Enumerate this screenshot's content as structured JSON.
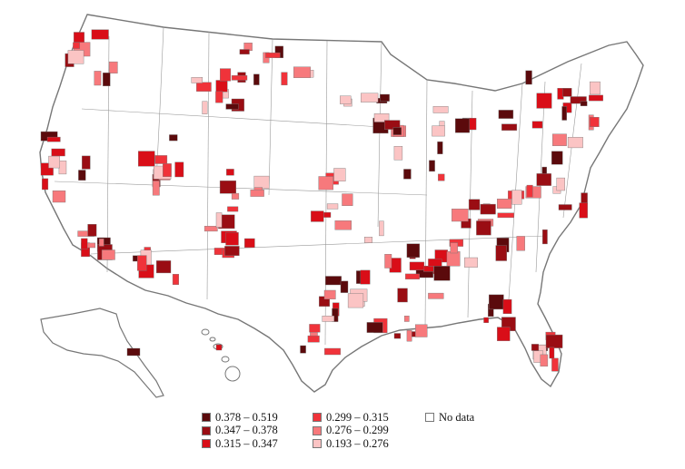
{
  "map": {
    "colors": {
      "bin1": "#5b0a0c",
      "bin2": "#9a0d13",
      "bin3": "#d90e18",
      "bin4": "#f0333a",
      "bin5": "#f7797c",
      "bin6": "#fbc4c4",
      "no_data": "#ffffff",
      "border": "#777777"
    }
  },
  "legend": {
    "items": [
      {
        "label": "0.378 – 0.519",
        "color": "#5b0a0c"
      },
      {
        "label": "0.347 – 0.378",
        "color": "#9a0d13"
      },
      {
        "label": "0.315 – 0.347",
        "color": "#d90e18"
      },
      {
        "label": "0.299 – 0.315",
        "color": "#f0333a"
      },
      {
        "label": "0.276 – 0.299",
        "color": "#f7797c"
      },
      {
        "label": "0.193 – 0.276",
        "color": "#fbc4c4"
      },
      {
        "label": "No data",
        "color": "#ffffff"
      }
    ]
  }
}
